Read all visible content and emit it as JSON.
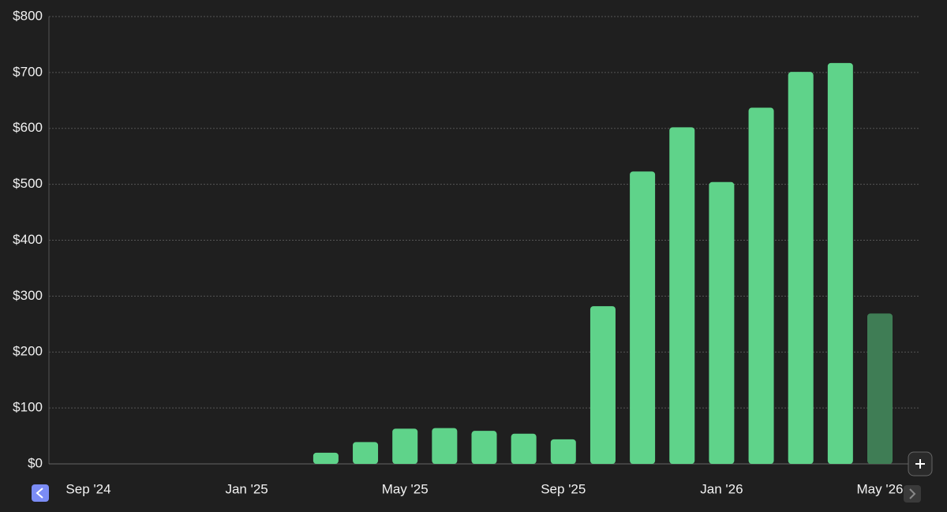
{
  "chart_data": {
    "type": "bar",
    "categories": [
      "Sep '24",
      null,
      null,
      null,
      "Jan '25",
      null,
      null,
      null,
      "May '25",
      null,
      null,
      null,
      "Sep '25",
      null,
      null,
      null,
      "Jan '26",
      null,
      null,
      null,
      "May '26"
    ],
    "values": [
      0,
      0,
      0,
      0,
      0,
      0,
      20,
      39,
      63,
      64,
      59,
      54,
      44,
      282,
      523,
      602,
      504,
      637,
      701,
      717,
      269
    ],
    "colors": [
      "#5fd38a",
      "#5fd38a",
      "#5fd38a",
      "#5fd38a",
      "#5fd38a",
      "#5fd38a",
      "#5fd38a",
      "#5fd38a",
      "#5fd38a",
      "#5fd38a",
      "#5fd38a",
      "#5fd38a",
      "#5fd38a",
      "#5fd38a",
      "#5fd38a",
      "#5fd38a",
      "#5fd38a",
      "#5fd38a",
      "#5fd38a",
      "#5fd38a",
      "#3f7d55"
    ],
    "ylim": [
      0,
      800
    ],
    "yticks": [
      {
        "value": 0,
        "label": "$0"
      },
      {
        "value": 100,
        "label": "$100"
      },
      {
        "value": 200,
        "label": "$200"
      },
      {
        "value": 300,
        "label": "$300"
      },
      {
        "value": 400,
        "label": "$400"
      },
      {
        "value": 500,
        "label": "$500"
      },
      {
        "value": 600,
        "label": "$600"
      },
      {
        "value": 700,
        "label": "$700"
      },
      {
        "value": 800,
        "label": "$800"
      }
    ],
    "grid": true
  }
}
